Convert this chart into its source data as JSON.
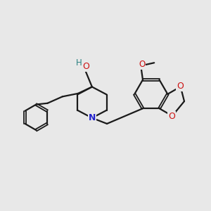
{
  "bg_color": "#e8e8e8",
  "bond_color": "#1a1a1a",
  "N_color": "#2222cc",
  "O_color": "#cc1111",
  "H_color": "#2a8080",
  "figsize": [
    3.0,
    3.0
  ],
  "dpi": 100,
  "xlim": [
    0,
    10
  ],
  "ylim": [
    0,
    10
  ]
}
